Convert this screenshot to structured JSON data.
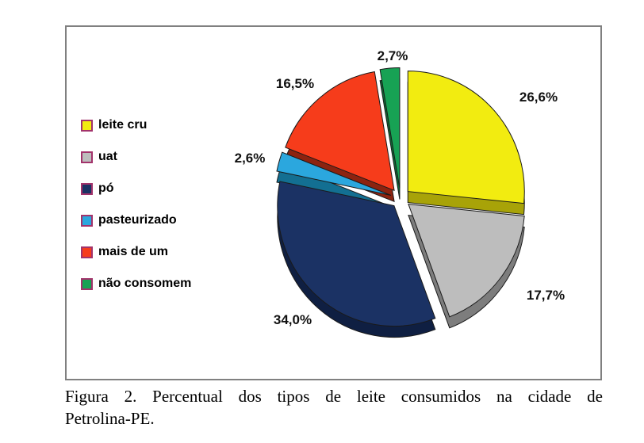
{
  "figure": {
    "caption_line1": "Figura 2. Percentual dos tipos de leite consumidos na cidade de",
    "caption_line2": "Petrolina-PE."
  },
  "chart_data": {
    "type": "pie",
    "style": "3d-exploded",
    "unit": "%",
    "start_angle": "12-o-clock",
    "direction": "clockwise",
    "legend_position": "left",
    "legend_swatch_border": "#A2336B",
    "outline_color": "#1a1a1a",
    "slices": [
      {
        "label": "leite cru",
        "value": 26.6,
        "pct_label": "26,6%",
        "color": "#F2EC10",
        "side_color": "#A8A308"
      },
      {
        "label": "uat",
        "value": 17.7,
        "pct_label": "17,7%",
        "color": "#BDBDBD",
        "side_color": "#7D7D7D"
      },
      {
        "label": "pó",
        "value": 34.0,
        "pct_label": "34,0%",
        "color": "#1B3264",
        "side_color": "#0F1F42"
      },
      {
        "label": "pasteurizado",
        "value": 2.6,
        "pct_label": "2,6%",
        "color": "#2BA7DE",
        "side_color": "#136F92"
      },
      {
        "label": "mais de um",
        "value": 16.5,
        "pct_label": "16,5%",
        "color": "#F63C1B",
        "side_color": "#8C2310"
      },
      {
        "label": "não consomem",
        "value": 2.7,
        "pct_label": "2,7%",
        "color": "#17A254",
        "side_color": "#0C6A36"
      }
    ]
  }
}
